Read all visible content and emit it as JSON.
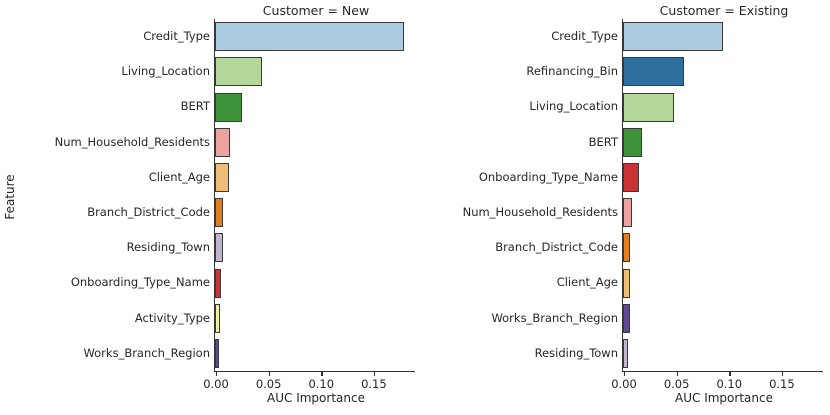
{
  "figure": {
    "background": "#ffffff",
    "axis_color": "#333333",
    "text_color": "#262626",
    "bar_edge_color": "#3a3a3a"
  },
  "chart_data": [
    {
      "type": "bar",
      "orientation": "horizontal",
      "title": "Customer = New",
      "xlabel": "AUC Importance",
      "ylabel": "Feature",
      "xlim": [
        0,
        0.19
      ],
      "grid": false,
      "xtick_labels": [
        "0.00",
        "0.05",
        "0.10",
        "0.15"
      ],
      "xtick_values": [
        0,
        0.05,
        0.1,
        0.15
      ],
      "categories": [
        "Credit_Type",
        "Living_Location",
        "BERT",
        "Num_Household_Residents",
        "Client_Age",
        "Branch_District_Code",
        "Residing_Town",
        "Onboarding_Type_Name",
        "Activity_Type",
        "Works_Branch_Region"
      ],
      "values": [
        0.18,
        0.045,
        0.026,
        0.014,
        0.013,
        0.0075,
        0.0075,
        0.006,
        0.005,
        0.004
      ],
      "colors": [
        "#abcbe0",
        "#b4d79b",
        "#3d923a",
        "#efa3a1",
        "#eebd78",
        "#df7f20",
        "#c2b4cf",
        "#ca3335",
        "#f0efa4",
        "#624a93"
      ]
    },
    {
      "type": "bar",
      "orientation": "horizontal",
      "title": "Customer = Existing",
      "xlabel": "AUC Importance",
      "ylabel": "",
      "xlim": [
        0,
        0.19
      ],
      "grid": false,
      "xtick_labels": [
        "0.00",
        "0.05",
        "0.10",
        "0.15"
      ],
      "xtick_values": [
        0,
        0.05,
        0.1,
        0.15
      ],
      "categories": [
        "Credit_Type",
        "Refinancing_Bin",
        "Living_Location",
        "BERT",
        "Onboarding_Type_Name",
        "Num_Household_Residents",
        "Branch_District_Code",
        "Client_Age",
        "Works_Branch_Region",
        "Residing_Town"
      ],
      "values": [
        0.095,
        0.0575,
        0.0485,
        0.018,
        0.015,
        0.0085,
        0.007,
        0.0065,
        0.0065,
        0.0047
      ],
      "colors": [
        "#abcbe0",
        "#2e6f9e",
        "#b4d79b",
        "#3d923a",
        "#ca3335",
        "#efa3a1",
        "#df7f20",
        "#eebd78",
        "#624a93",
        "#c2b4cf"
      ]
    }
  ]
}
